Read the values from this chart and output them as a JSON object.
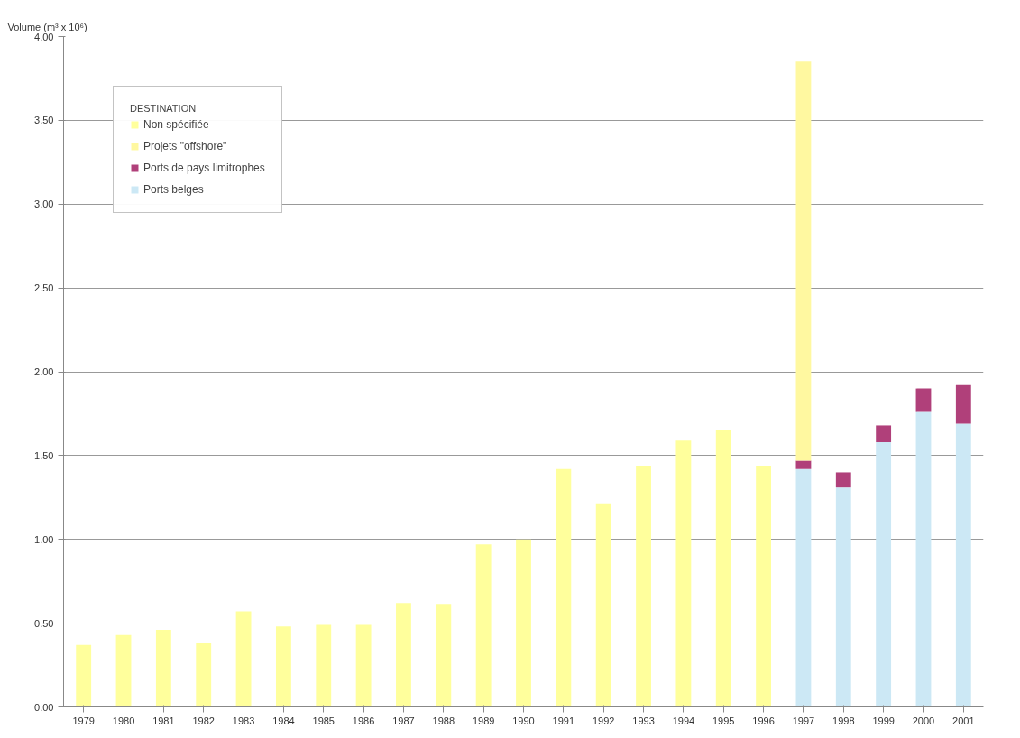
{
  "chart_data": {
    "type": "bar",
    "stacked": true,
    "ylabel": "Volume (m³ x 10⁶)",
    "legend_title": "DESTINATION",
    "legend": "top left",
    "grid": "y",
    "categories": [
      "1979",
      "1980",
      "1981",
      "1982",
      "1983",
      "1984",
      "1985",
      "1986",
      "1987",
      "1988",
      "1989",
      "1990",
      "1991",
      "1992",
      "1993",
      "1994",
      "1995",
      "1996",
      "1997",
      "1998",
      "1999",
      "2000",
      "2001"
    ],
    "ylim": [
      0,
      4
    ],
    "yticks": [
      {
        "value": 0,
        "label": "0.00"
      },
      {
        "value": 0.5,
        "label": "0.50"
      },
      {
        "value": 1,
        "label": "1.00"
      },
      {
        "value": 1.5,
        "label": "1.50"
      },
      {
        "value": 2,
        "label": "2.00"
      },
      {
        "value": 2.5,
        "label": "2.50"
      },
      {
        "value": 3,
        "label": "3.00"
      },
      {
        "value": 3.5,
        "label": "3.50"
      },
      {
        "value": 4,
        "label": "4.00"
      }
    ],
    "series": [
      {
        "name": "Ports belges",
        "color": "#cce8f5",
        "values": [
          null,
          null,
          null,
          null,
          null,
          null,
          null,
          null,
          null,
          null,
          null,
          null,
          null,
          null,
          null,
          null,
          null,
          null,
          1.42,
          1.31,
          1.58,
          1.76,
          1.69
        ]
      },
      {
        "name": "Ports de pays limitrophes",
        "color": "#b0407a",
        "values": [
          null,
          null,
          null,
          null,
          null,
          null,
          null,
          null,
          null,
          null,
          null,
          null,
          null,
          null,
          null,
          null,
          null,
          null,
          0.05,
          0.09,
          0.1,
          0.14,
          0.23
        ]
      },
      {
        "name": "Projets \"offshore\"",
        "color": "#fff8a0",
        "values": [
          null,
          null,
          null,
          null,
          null,
          null,
          null,
          null,
          null,
          null,
          null,
          null,
          null,
          null,
          null,
          null,
          null,
          null,
          2.38,
          null,
          null,
          null,
          null
        ]
      },
      {
        "name": "Non spécifiée",
        "color": "#ffff9c",
        "values": [
          0.37,
          0.43,
          0.46,
          0.38,
          0.57,
          0.48,
          0.49,
          0.49,
          0.62,
          0.61,
          0.97,
          1.0,
          1.42,
          1.21,
          1.44,
          1.59,
          1.65,
          1.44,
          null,
          null,
          null,
          null,
          null
        ]
      }
    ]
  }
}
